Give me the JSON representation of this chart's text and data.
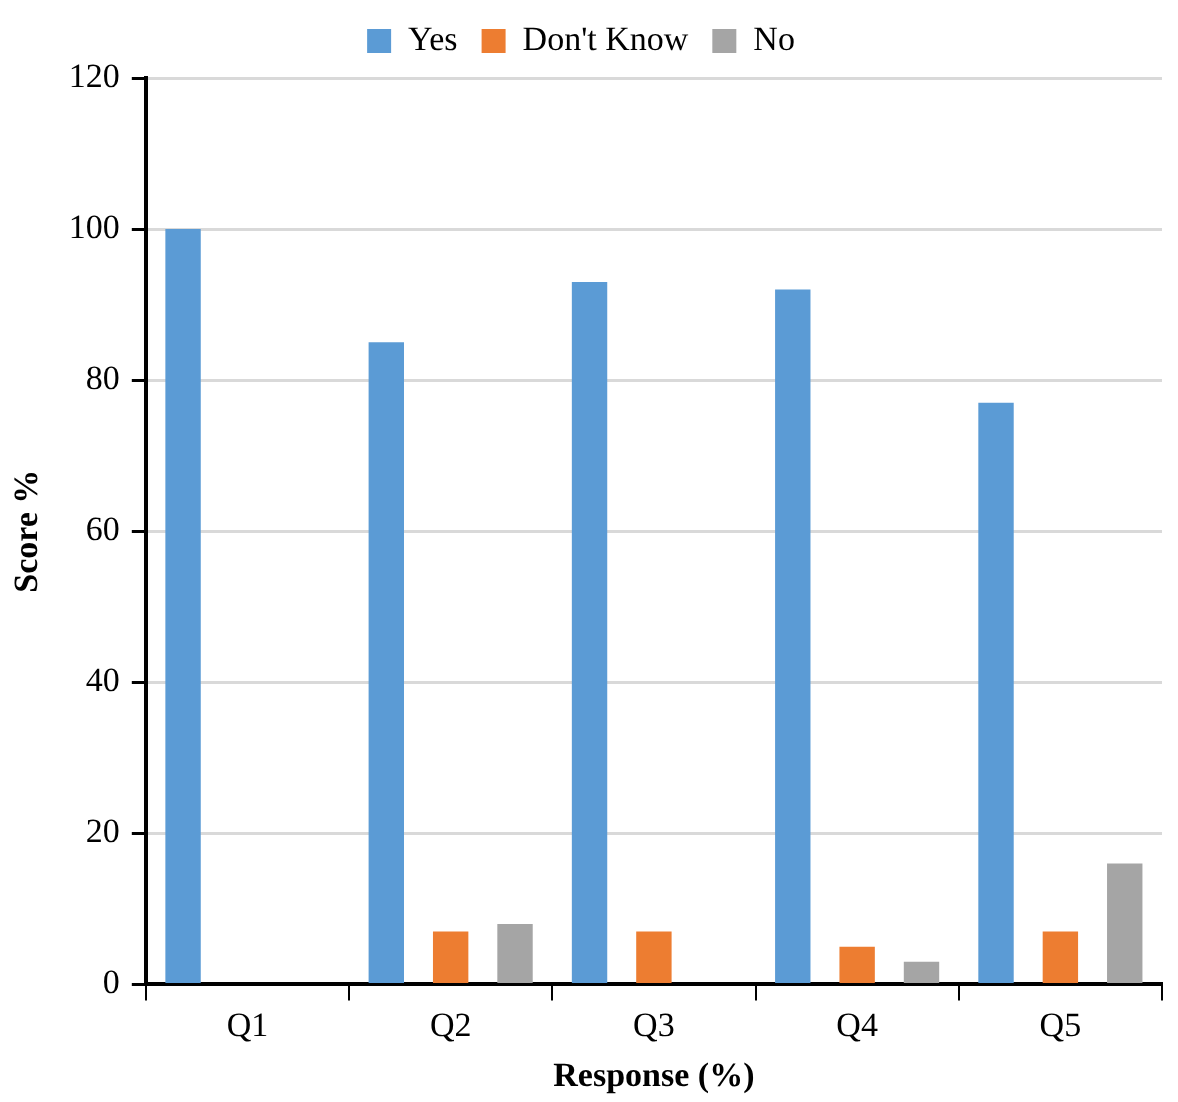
{
  "chart_data": {
    "type": "bar",
    "xlabel": "Response (%)",
    "ylabel": "Score %",
    "categories": [
      "Q1",
      "Q2",
      "Q3",
      "Q4",
      "Q5"
    ],
    "series": [
      {
        "name": "Yes",
        "color": "#5b9bd5",
        "values": [
          100,
          85,
          93,
          92,
          77
        ]
      },
      {
        "name": "Don't Know",
        "color": "#ed7d31",
        "values": [
          0,
          7,
          7,
          5,
          7
        ]
      },
      {
        "name": "No",
        "color": "#a5a5a5",
        "values": [
          0,
          8,
          0,
          3,
          16
        ]
      }
    ],
    "ylim": [
      0,
      120
    ],
    "yticks": [
      0,
      20,
      40,
      60,
      80,
      100,
      120
    ],
    "grid": "y",
    "legend": "top"
  }
}
